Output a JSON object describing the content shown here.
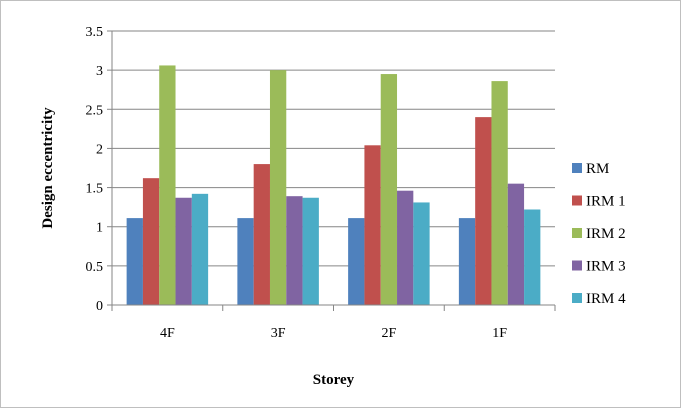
{
  "chart_data": {
    "type": "bar",
    "categories": [
      "4F",
      "3F",
      "2F",
      "1F"
    ],
    "series": [
      {
        "name": "RM",
        "color": "#4F81BD",
        "values": [
          1.11,
          1.11,
          1.11,
          1.11
        ]
      },
      {
        "name": "IRM 1",
        "color": "#C0504D",
        "values": [
          1.62,
          1.8,
          2.04,
          2.4
        ]
      },
      {
        "name": "IRM 2",
        "color": "#9BBB59",
        "values": [
          3.06,
          3.0,
          2.95,
          2.86
        ]
      },
      {
        "name": "IRM 3",
        "color": "#8064A2",
        "values": [
          1.37,
          1.39,
          1.46,
          1.55
        ]
      },
      {
        "name": "IRM 4",
        "color": "#4BACC6",
        "values": [
          1.42,
          1.37,
          1.31,
          1.22
        ]
      }
    ],
    "xlabel": "Storey",
    "ylabel": "Design eccentricity",
    "ylim": [
      0,
      3.5
    ],
    "yticks": [
      "0",
      "0.5",
      "1",
      "1.5",
      "2",
      "2.5",
      "3",
      "3.5"
    ],
    "grid": true,
    "legend": "right"
  }
}
